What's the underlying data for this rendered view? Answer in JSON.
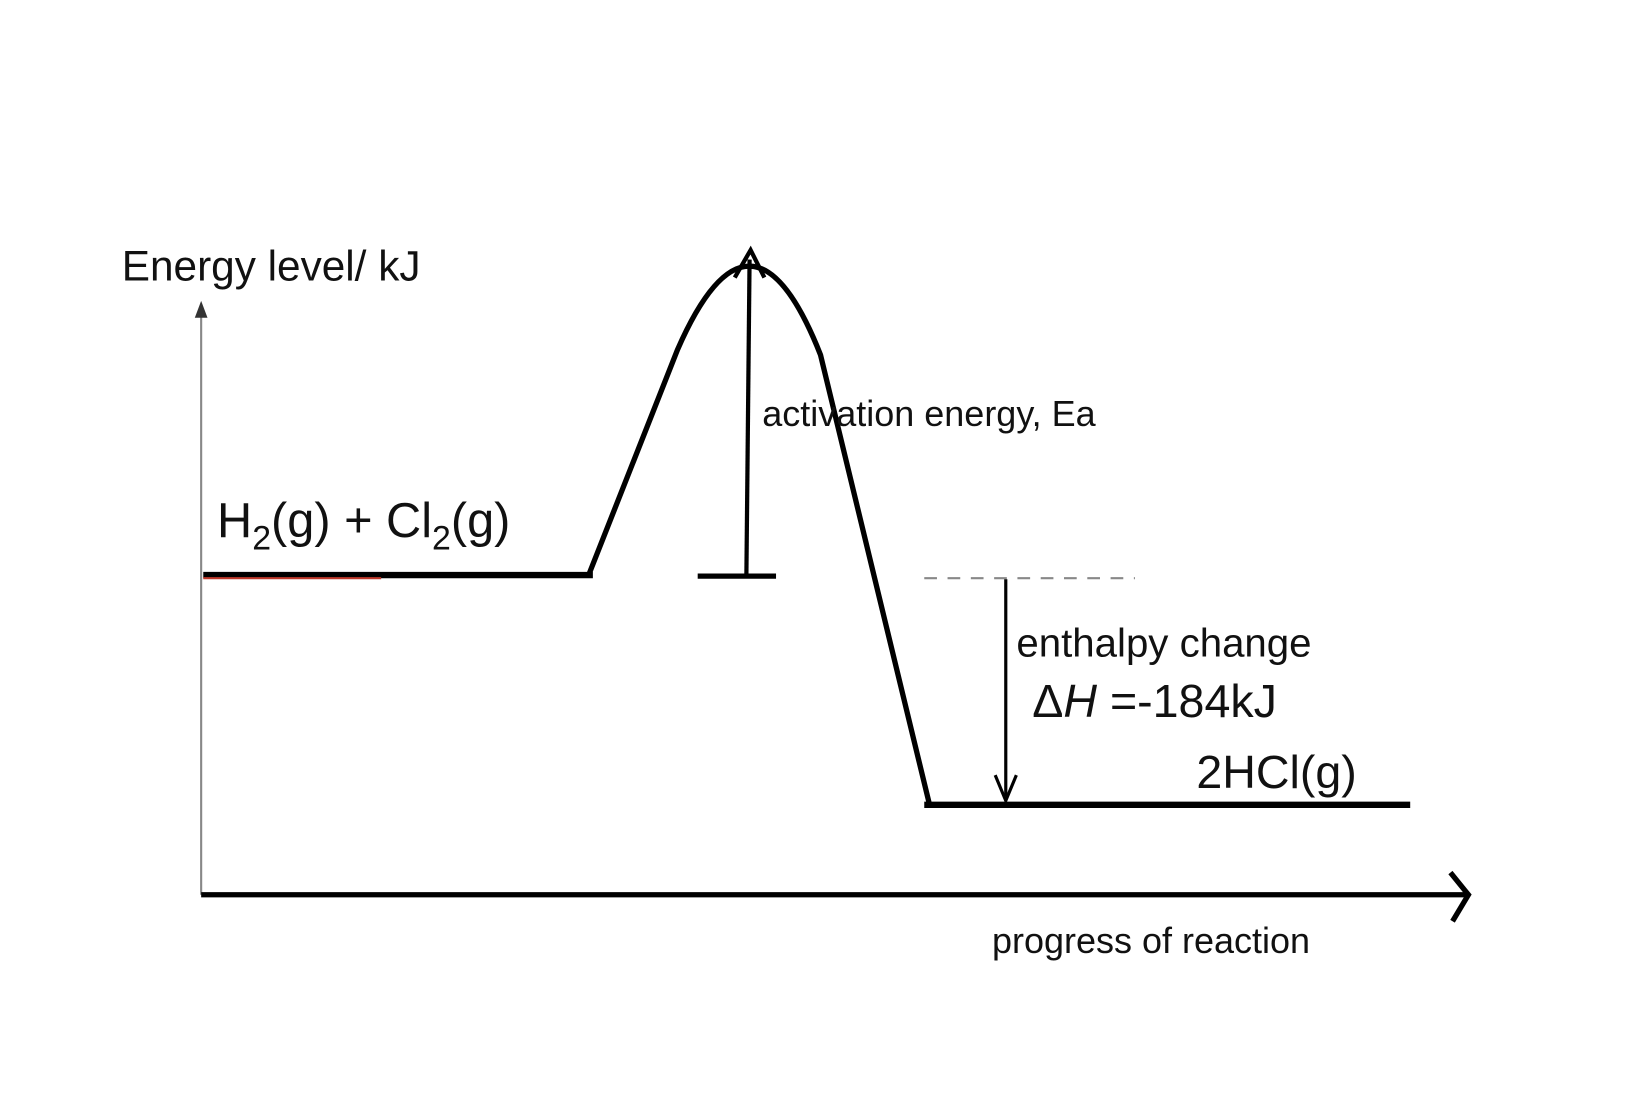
{
  "diagram": {
    "y_axis_label": "Energy level/ kJ",
    "x_axis_label": "progress of reaction",
    "reactants": [
      "H",
      "2",
      "(g) + Cl",
      "2",
      "(g)"
    ],
    "activation_label": "activation energy, Ea",
    "enthalpy_label": "enthalpy change",
    "enthalpy_value": [
      "Δ",
      "H",
      " =-184kJ"
    ],
    "products": "2HCl(g)"
  }
}
